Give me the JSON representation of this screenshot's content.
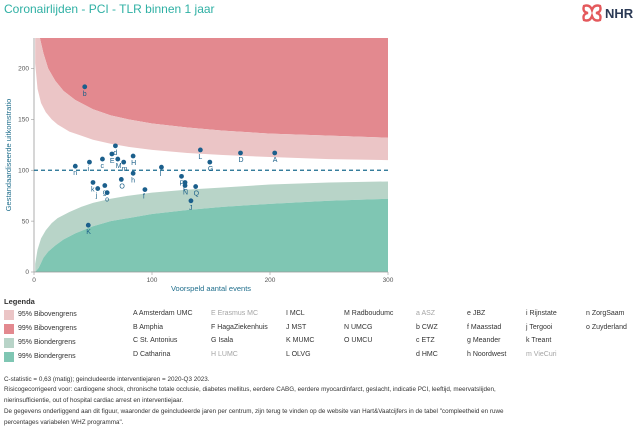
{
  "title": "Coronairlijden - PCI - TLR binnen 1 jaar",
  "logo_text": "NHR",
  "chart_data": {
    "type": "scatter",
    "subtype": "funnel",
    "xlabel": "Voorspeld aantal events",
    "ylabel": "Gestandaardiseerde uitkomstratio",
    "xlim": [
      0,
      300
    ],
    "ylim": [
      0,
      230
    ],
    "xticks": [
      0,
      100,
      200,
      300
    ],
    "yticks": [
      0,
      50,
      100,
      150,
      200
    ],
    "reference_line": 100,
    "bands": {
      "upper95": [
        [
          1,
          205
        ],
        [
          3,
          180
        ],
        [
          6,
          166
        ],
        [
          10,
          157
        ],
        [
          15,
          150
        ],
        [
          20,
          145
        ],
        [
          30,
          138
        ],
        [
          40,
          134
        ],
        [
          50,
          130
        ],
        [
          65,
          126
        ],
        [
          80,
          123
        ],
        [
          100,
          120
        ],
        [
          130,
          117
        ],
        [
          160,
          115
        ],
        [
          200,
          113
        ],
        [
          250,
          111
        ],
        [
          300,
          110
        ]
      ],
      "upper99": [
        [
          1,
          230
        ],
        [
          5,
          230
        ],
        [
          8,
          215
        ],
        [
          12,
          200
        ],
        [
          18,
          188
        ],
        [
          25,
          178
        ],
        [
          35,
          169
        ],
        [
          50,
          160
        ],
        [
          65,
          154
        ],
        [
          80,
          150
        ],
        [
          100,
          146
        ],
        [
          130,
          142
        ],
        [
          160,
          139
        ],
        [
          200,
          136
        ],
        [
          250,
          134
        ],
        [
          300,
          132
        ]
      ],
      "lower95": [
        [
          1,
          8
        ],
        [
          3,
          22
        ],
        [
          6,
          33
        ],
        [
          10,
          41
        ],
        [
          15,
          48
        ],
        [
          20,
          53
        ],
        [
          30,
          59
        ],
        [
          40,
          64
        ],
        [
          50,
          68
        ],
        [
          65,
          72
        ],
        [
          80,
          75
        ],
        [
          100,
          78
        ],
        [
          130,
          81
        ],
        [
          160,
          83
        ],
        [
          200,
          86
        ],
        [
          250,
          88
        ],
        [
          300,
          89
        ]
      ],
      "lower99": [
        [
          1,
          0
        ],
        [
          4,
          4
        ],
        [
          8,
          14
        ],
        [
          12,
          20
        ],
        [
          18,
          26
        ],
        [
          25,
          32
        ],
        [
          35,
          38
        ],
        [
          50,
          45
        ],
        [
          65,
          50
        ],
        [
          80,
          53
        ],
        [
          100,
          57
        ],
        [
          130,
          61
        ],
        [
          160,
          64
        ],
        [
          200,
          67
        ],
        [
          250,
          70
        ],
        [
          300,
          72
        ]
      ]
    },
    "points": [
      {
        "label": "A",
        "x": 204,
        "y": 117
      },
      {
        "label": "b",
        "x": 43,
        "y": 182
      },
      {
        "label": "c",
        "x": 58,
        "y": 111
      },
      {
        "label": "d",
        "x": 69,
        "y": 124
      },
      {
        "label": "D",
        "x": 175,
        "y": 117
      },
      {
        "label": "E",
        "x": 66,
        "y": 116
      },
      {
        "label": "f",
        "x": 94,
        "y": 81
      },
      {
        "label": "F",
        "x": 128,
        "y": 88
      },
      {
        "label": "g",
        "x": 60,
        "y": 85
      },
      {
        "label": "G",
        "x": 149,
        "y": 108
      },
      {
        "label": "h",
        "x": 84,
        "y": 97
      },
      {
        "label": "H",
        "x": 84,
        "y": 114
      },
      {
        "label": "i",
        "x": 47,
        "y": 108
      },
      {
        "label": "I",
        "x": 108,
        "y": 103
      },
      {
        "label": "j",
        "x": 54,
        "y": 82
      },
      {
        "label": "J",
        "x": 133,
        "y": 70
      },
      {
        "label": "k",
        "x": 50,
        "y": 88
      },
      {
        "label": "K",
        "x": 46,
        "y": 46
      },
      {
        "label": "L",
        "x": 141,
        "y": 120
      },
      {
        "label": "m",
        "x": 76,
        "y": 108
      },
      {
        "label": "M",
        "x": 71,
        "y": 111
      },
      {
        "label": "n",
        "x": 35,
        "y": 104
      },
      {
        "label": "N",
        "x": 128,
        "y": 85
      },
      {
        "label": "o",
        "x": 62,
        "y": 78
      },
      {
        "label": "O",
        "x": 74,
        "y": 91
      },
      {
        "label": "P",
        "x": 125,
        "y": 94
      },
      {
        "label": "Q",
        "x": 137,
        "y": 84
      }
    ]
  },
  "legend": {
    "title": "Legenda",
    "bands": [
      {
        "label": "95% Bibovengrens",
        "color": "#ebc5c6"
      },
      {
        "label": "99% Bibovengrens",
        "color": "#e3898f"
      },
      {
        "label": "95% Biondergrens",
        "color": "#b8d4c8"
      },
      {
        "label": "99% Biondergrens",
        "color": "#7fc6b3"
      }
    ],
    "hospitals": [
      [
        "A Amsterdam UMC",
        "B Amphia",
        "C St. Antonius",
        "D Catharina"
      ],
      [
        "E Erasmus MC",
        "F HagaZiekenhuis",
        "G Isala",
        "H LUMC"
      ],
      [
        "I MCL",
        "J MST",
        "K MUMC",
        "L OLVG"
      ],
      [
        "M Radboudumc",
        "N UMCG",
        "O UMCU"
      ],
      [
        "a ASZ",
        "b CWZ",
        "c ETZ",
        "d HMC"
      ],
      [
        "e JBZ",
        "f Maasstad",
        "g Meander",
        "h Noordwest"
      ],
      [
        "i Rijnstate",
        "j Tergooi",
        "k Treant",
        "m VieCuri"
      ],
      [
        "n ZorgSaam",
        "o Zuyderland"
      ]
    ],
    "grayed": [
      "E Erasmus MC",
      "H LUMC",
      "a ASZ",
      "m VieCuri"
    ]
  },
  "footnotes": [
    "C-statistic = 0,63 (matig); geincludeerde interventiejaren = 2020-Q3 2023.",
    "Risicogecorrigeerd voor: cardiogene shock, chronische totale occlusie, diabetes mellitus, eerdere CABG, eerdere myocardinfarct, geslacht, indicatie PCI, leeftijd, meervatslijden,",
    "nierinsufficientie, out of hospital cardiac arrest en interventiejaar.",
    "De gegevens onderliggend aan dit figuur, waaronder de geincludeerde jaren per centrum, zijn terug te vinden op de website van Hart&Vaatcijfers in de tabel \"compleetheid en ruwe",
    "percentages variabelen WHZ programma\"."
  ]
}
